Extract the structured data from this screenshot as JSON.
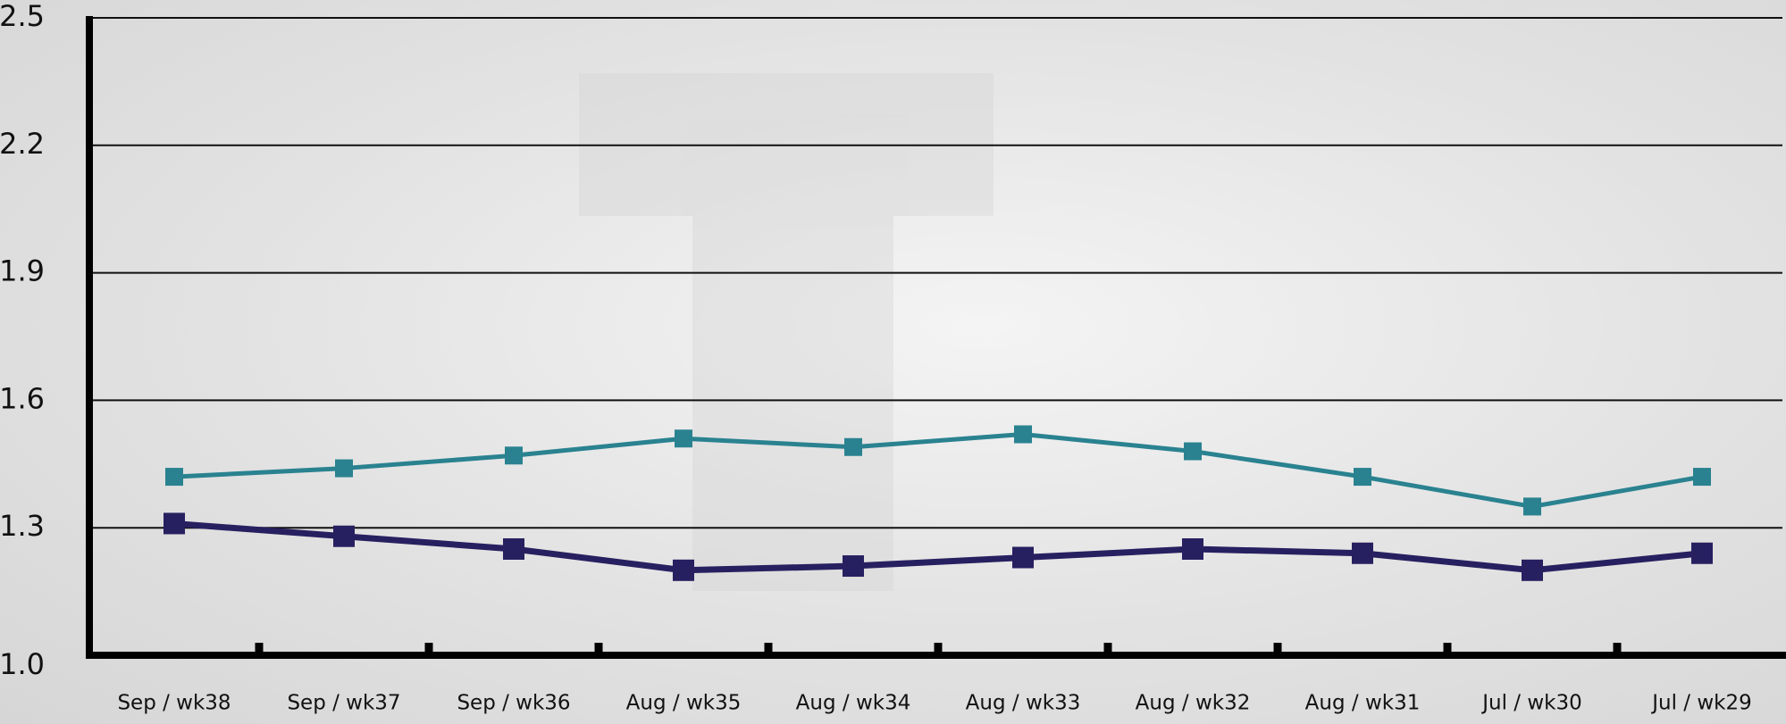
{
  "chart_data": {
    "type": "line",
    "categories": [
      "Sep / wk38",
      "Sep / wk37",
      "Sep / wk36",
      "Aug / wk35",
      "Aug / wk34",
      "Aug / wk33",
      "Aug / wk32",
      "Aug / wk31",
      "Jul / wk30",
      "Jul / wk29"
    ],
    "series": [
      {
        "color": "#2a8290",
        "values": [
          1.42,
          1.44,
          1.47,
          1.51,
          1.49,
          1.52,
          1.48,
          1.42,
          1.35,
          1.42
        ]
      },
      {
        "color": "#272060",
        "values": [
          1.31,
          1.28,
          1.25,
          1.2,
          1.21,
          1.23,
          1.25,
          1.24,
          1.2,
          1.24
        ]
      }
    ],
    "ylim": [
      1,
      2.5
    ],
    "yticks": [
      {
        "value": 1,
        "label": "1.0"
      },
      1.3,
      1.6,
      1.9,
      2.2,
      2.5
    ],
    "grid": true
  }
}
